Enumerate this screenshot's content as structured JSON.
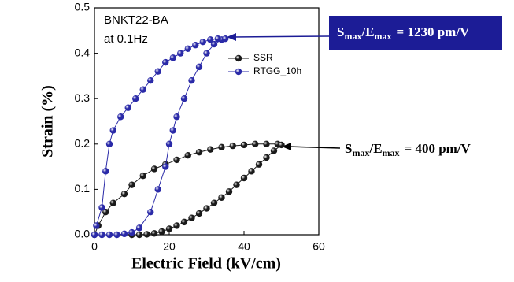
{
  "chart_data": {
    "type": "line",
    "xlabel": "Electric Field (kV/cm)",
    "ylabel": "Strain (%)",
    "xlim": [
      0,
      60
    ],
    "ylim": [
      0,
      0.5
    ],
    "xticks": [
      0,
      20,
      40,
      60
    ],
    "yticks": [
      {
        "value": 0,
        "label": "0.0"
      },
      0.1,
      0.2,
      0.3,
      0.4,
      0.5
    ],
    "legend": "upper right",
    "notes": [
      "BNKT22-BA",
      "at 0.1Hz"
    ],
    "callouts": [
      {
        "parts": [
          "S",
          "max",
          "/E",
          "max",
          "= 1230 pm/V"
        ],
        "boxed": true,
        "color": "#1c1c96"
      },
      {
        "parts": [
          "S",
          "max",
          "/E",
          "max",
          "= 400 pm/V"
        ],
        "boxed": false,
        "color": "#000000"
      }
    ],
    "series": [
      {
        "name": "SSR",
        "color": "#1a1a1a",
        "x": [
          0,
          1,
          3,
          5,
          8,
          10,
          13,
          16,
          19,
          22,
          25,
          28,
          31,
          34,
          37,
          40,
          43,
          46,
          49,
          50,
          48,
          46,
          44,
          42,
          40,
          38,
          36,
          34,
          32,
          30,
          28,
          26,
          24,
          22,
          20,
          18,
          16,
          14,
          12,
          10
        ],
        "values": [
          0,
          0.02,
          0.05,
          0.07,
          0.09,
          0.11,
          0.13,
          0.145,
          0.155,
          0.165,
          0.175,
          0.182,
          0.188,
          0.193,
          0.196,
          0.198,
          0.2,
          0.2,
          0.2,
          0.198,
          0.185,
          0.17,
          0.155,
          0.14,
          0.125,
          0.11,
          0.095,
          0.082,
          0.07,
          0.058,
          0.047,
          0.037,
          0.028,
          0.02,
          0.013,
          0.007,
          0.003,
          0.001,
          0,
          0
        ]
      },
      {
        "name": "RTGG_10h",
        "color": "#2a2aa8",
        "x": [
          0,
          2,
          4,
          6,
          8,
          10,
          12,
          15,
          17,
          19,
          20,
          21,
          22,
          24,
          26,
          28,
          30,
          32,
          34,
          35,
          33,
          31,
          29,
          27,
          25,
          23,
          21,
          19,
          17,
          15,
          13,
          11,
          9,
          7,
          5,
          4,
          3,
          2,
          0.5
        ],
        "values": [
          0,
          0,
          0,
          0,
          0.002,
          0.005,
          0.015,
          0.05,
          0.1,
          0.15,
          0.2,
          0.23,
          0.26,
          0.3,
          0.34,
          0.37,
          0.4,
          0.42,
          0.43,
          0.432,
          0.432,
          0.43,
          0.425,
          0.418,
          0.41,
          0.4,
          0.39,
          0.38,
          0.36,
          0.34,
          0.32,
          0.3,
          0.28,
          0.26,
          0.23,
          0.2,
          0.14,
          0.06,
          0.02
        ]
      }
    ]
  }
}
